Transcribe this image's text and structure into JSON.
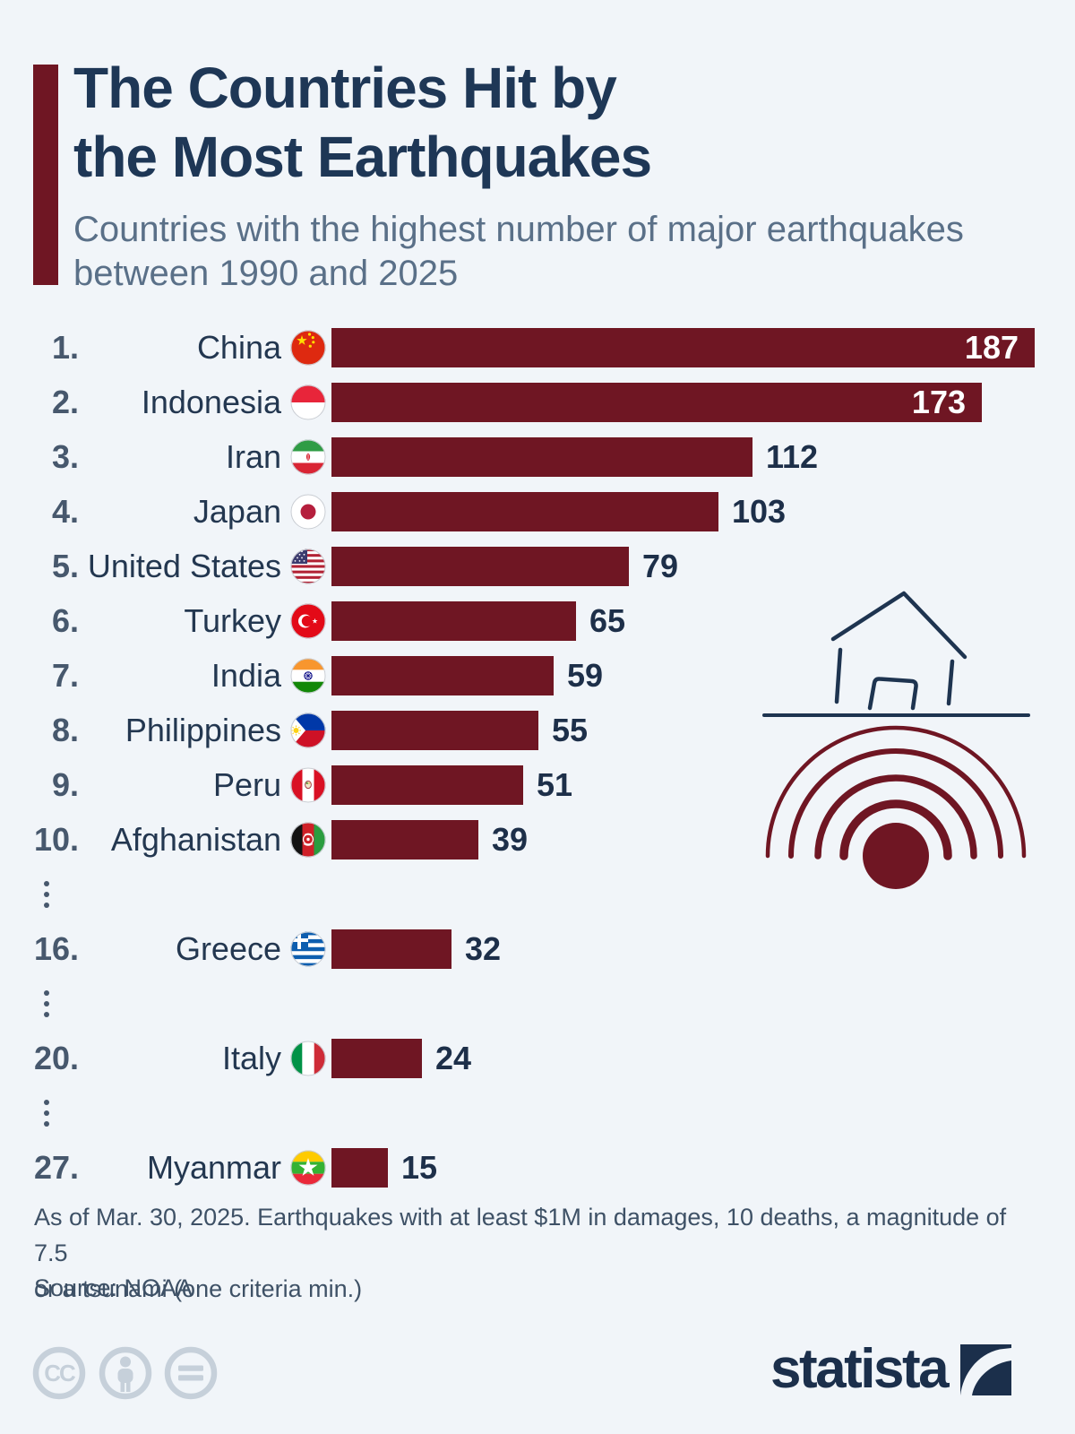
{
  "header": {
    "title_line1": "The Countries Hit by",
    "title_line2": "the Most Earthquakes",
    "subtitle_line1": "Countries with the highest number of major earthquakes",
    "subtitle_line2": "between 1990 and 2025"
  },
  "chart_data": {
    "type": "bar",
    "orientation": "horizontal",
    "title": "The Countries Hit by the Most Earthquakes",
    "subtitle": "Countries with the highest number of major earthquakes between 1990 and 2025",
    "unit": "number of major earthquakes",
    "value_range": [
      0,
      187
    ],
    "bar_color": "#6F1623",
    "rows": [
      {
        "rank": "1.",
        "country": "China",
        "flag": "china",
        "value": 187,
        "label_inside": true
      },
      {
        "rank": "2.",
        "country": "Indonesia",
        "flag": "indonesia",
        "value": 173,
        "label_inside": true
      },
      {
        "rank": "3.",
        "country": "Iran",
        "flag": "iran",
        "value": 112
      },
      {
        "rank": "4.",
        "country": "Japan",
        "flag": "japan",
        "value": 103
      },
      {
        "rank": "5.",
        "country": "United States",
        "flag": "united-states",
        "value": 79
      },
      {
        "rank": "6.",
        "country": "Turkey",
        "flag": "turkey",
        "value": 65
      },
      {
        "rank": "7.",
        "country": "India",
        "flag": "india",
        "value": 59
      },
      {
        "rank": "8.",
        "country": "Philippines",
        "flag": "philippines",
        "value": 55
      },
      {
        "rank": "9.",
        "country": "Peru",
        "flag": "peru",
        "value": 51
      },
      {
        "rank": "10.",
        "country": "Afghanistan",
        "flag": "afghanistan",
        "value": 39
      },
      {
        "rank": "16.",
        "country": "Greece",
        "flag": "greece",
        "value": 32,
        "ellipsis_before": true
      },
      {
        "rank": "20.",
        "country": "Italy",
        "flag": "italy",
        "value": 24,
        "ellipsis_before": true
      },
      {
        "rank": "27.",
        "country": "Myanmar",
        "flag": "myanmar",
        "value": 15,
        "ellipsis_before": true
      }
    ]
  },
  "footnote": {
    "lines": [
      "As of Mar. 30, 2025. Earthquakes with at least $1M in damages, 10 deaths, a magnitude of 7.5",
      "or a tsunami (one criteria min.)"
    ],
    "source": "Source: NOAA"
  },
  "footer": {
    "license_icons": [
      "cc-icon",
      "cc-by-icon",
      "cc-nd-icon"
    ],
    "brand": "statista"
  },
  "colors": {
    "background": "#F1F5F9",
    "bar": "#6F1623",
    "accent_bar": "#6F1623",
    "title": "#1E3756",
    "subtitle": "#5A7088",
    "rank": "#47586D",
    "country": "#233750",
    "value": "#1D2F49",
    "value_inside": "#FFFFFF",
    "illustration_navy": "#1E3450",
    "license_icons": "#C6D0DA",
    "brand_navy": "#1B2F4B"
  }
}
